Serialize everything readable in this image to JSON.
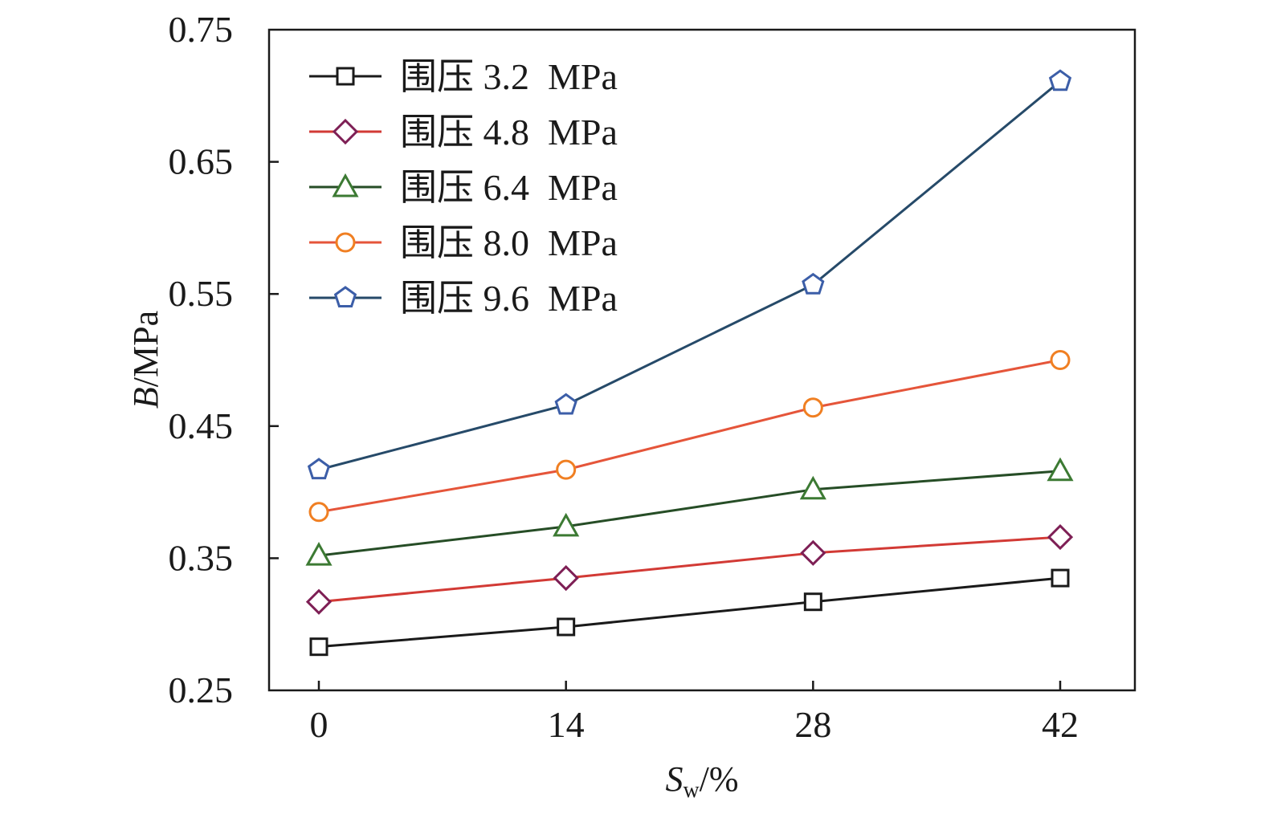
{
  "chart_data": {
    "type": "line",
    "title": "",
    "xlabel": "S",
    "xlabel_sub": "w",
    "xlabel_suffix": "/%",
    "ylabel": "B",
    "ylabel_suffix": "/MPa",
    "x": [
      0,
      14,
      28,
      42
    ],
    "xticks": [
      "0",
      "14",
      "28",
      "42"
    ],
    "yticks": [
      "0.25",
      "0.35",
      "0.45",
      "0.55",
      "0.65",
      "0.75"
    ],
    "ytick_values": [
      0.25,
      0.35,
      0.45,
      0.55,
      0.65,
      0.75
    ],
    "xlim": [
      -4,
      66
    ],
    "ylim": [
      0.25,
      0.75
    ],
    "grid": false,
    "legend_position": "top-left",
    "series": [
      {
        "name": "围压 3.2  MPa",
        "marker": "square",
        "line_color": "#1a1a1a",
        "marker_color": "#1a1a1a",
        "values": [
          0.283,
          0.298,
          0.317,
          0.335
        ]
      },
      {
        "name": "围压 4.8  MPa",
        "marker": "diamond",
        "line_color": "#d23a35",
        "marker_color": "#7e1f55",
        "values": [
          0.317,
          0.335,
          0.354,
          0.366
        ]
      },
      {
        "name": "围压 6.4  MPa",
        "marker": "triangle",
        "line_color": "#264d26",
        "marker_color": "#3c7a33",
        "values": [
          0.352,
          0.374,
          0.402,
          0.416
        ]
      },
      {
        "name": "围压 8.0  MPa",
        "marker": "circle",
        "line_color": "#e5553a",
        "marker_color": "#f07f22",
        "values": [
          0.385,
          0.417,
          0.464,
          0.5
        ]
      },
      {
        "name": "围压 9.6  MPa",
        "marker": "pentagon",
        "line_color": "#264a69",
        "marker_color": "#3c5ea8",
        "values": [
          0.417,
          0.466,
          0.557,
          0.711
        ]
      }
    ]
  }
}
